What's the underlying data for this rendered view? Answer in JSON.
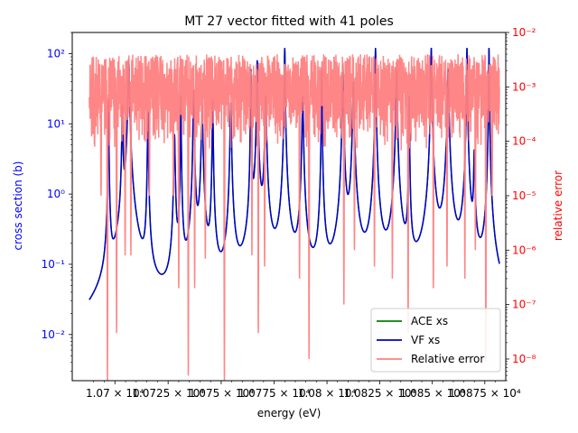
{
  "chart_data": {
    "type": "line",
    "title": "MT 27 vector fitted with 41 poles",
    "xlabel": "energy (eV)",
    "ylabel": "cross section (b)",
    "ylabel_right": "relative error",
    "x_scale": "log",
    "y_scale": "log",
    "y_right_scale": "log",
    "xlim": [
      10680,
      10885
    ],
    "ylim": [
      0.0022,
      200
    ],
    "ylim_right": [
      4e-09,
      0.01
    ],
    "x_ticks": [
      {
        "value": 10700,
        "label": "1.07 × 10⁴"
      },
      {
        "value": 10725,
        "label": "1.0725 × 10⁴"
      },
      {
        "value": 10750,
        "label": "1.075 × 10⁴"
      },
      {
        "value": 10775,
        "label": "1.0775 × 10⁴"
      },
      {
        "value": 10800,
        "label": "1.08 × 10⁴"
      },
      {
        "value": 10825,
        "label": "1.0825 × 10⁴"
      },
      {
        "value": 10850,
        "label": "1.085 × 10⁴"
      },
      {
        "value": 10875,
        "label": "1.0875 × 10⁴"
      }
    ],
    "y_ticks": [
      {
        "value": 0.01,
        "label": "10⁻²"
      },
      {
        "value": 0.1,
        "label": "10⁻¹"
      },
      {
        "value": 1,
        "label": "10⁰"
      },
      {
        "value": 10,
        "label": "10¹"
      },
      {
        "value": 100,
        "label": "10²"
      }
    ],
    "y_right_ticks": [
      {
        "value": 1e-08,
        "label": "10⁻⁸"
      },
      {
        "value": 1e-07,
        "label": "10⁻⁷"
      },
      {
        "value": 1e-06,
        "label": "10⁻⁶"
      },
      {
        "value": 1e-05,
        "label": "10⁻⁵"
      },
      {
        "value": 0.0001,
        "label": "10⁻⁴"
      },
      {
        "value": 0.001,
        "label": "10⁻³"
      },
      {
        "value": 0.01,
        "label": "10⁻²"
      }
    ],
    "x_range": [
      10688,
      10882
    ],
    "baseline": 0.0009,
    "resonances": [
      {
        "x": 10697.0,
        "peak": 22
      },
      {
        "x": 10703.5,
        "peak": 18
      },
      {
        "x": 10706.5,
        "peak": 80
      },
      {
        "x": 10715.5,
        "peak": 15
      },
      {
        "x": 10728.0,
        "peak": 7
      },
      {
        "x": 10731.0,
        "peak": 25
      },
      {
        "x": 10737.0,
        "peak": 30
      },
      {
        "x": 10741.0,
        "peak": 18
      },
      {
        "x": 10746.0,
        "peak": 22
      },
      {
        "x": 10754.5,
        "peak": 20
      },
      {
        "x": 10764.0,
        "peak": 60
      },
      {
        "x": 10767.0,
        "peak": 80
      },
      {
        "x": 10771.0,
        "peak": 25
      },
      {
        "x": 10780.0,
        "peak": 120
      },
      {
        "x": 10788.5,
        "peak": 25
      },
      {
        "x": 10797.5,
        "peak": 60
      },
      {
        "x": 10807.5,
        "peak": 70
      },
      {
        "x": 10812.5,
        "peak": 40
      },
      {
        "x": 10823.0,
        "peak": 120
      },
      {
        "x": 10833.0,
        "peak": 60
      },
      {
        "x": 10839.0,
        "peak": 25
      },
      {
        "x": 10849.5,
        "peak": 120
      },
      {
        "x": 10857.5,
        "peak": 60
      },
      {
        "x": 10866.5,
        "peak": 120
      },
      {
        "x": 10870.0,
        "peak": 4
      },
      {
        "x": 10877.0,
        "peak": 120
      }
    ],
    "series": [
      {
        "name": "ACE xs",
        "color": "#008000",
        "axis": "left"
      },
      {
        "name": "VF xs",
        "color": "#0000cc",
        "axis": "left"
      },
      {
        "name": "Relative error",
        "color": "#ff8080",
        "axis": "right"
      }
    ],
    "relative_error": {
      "typical_range": [
        0.0001,
        0.004
      ],
      "dips": [
        {
          "x": 10690.5,
          "value": 8e-05
        },
        {
          "x": 10693.5,
          "value": 1e-05
        },
        {
          "x": 10696.5,
          "value": 3e-09
        },
        {
          "x": 10700.8,
          "value": 3e-08
        },
        {
          "x": 10704.8,
          "value": 8e-07
        },
        {
          "x": 10707.5,
          "value": 8e-07
        },
        {
          "x": 10716.2,
          "value": 1e-05
        },
        {
          "x": 10727.5,
          "value": 1e-05
        },
        {
          "x": 10730.0,
          "value": 2e-07
        },
        {
          "x": 10734.5,
          "value": 4.95e-09
        },
        {
          "x": 10737.5,
          "value": 2e-07
        },
        {
          "x": 10742.5,
          "value": 7e-07
        },
        {
          "x": 10751.5,
          "value": 4e-09
        },
        {
          "x": 10764.5,
          "value": 8e-07
        },
        {
          "x": 10767.5,
          "value": 3e-08
        },
        {
          "x": 10770.5,
          "value": 5e-07
        },
        {
          "x": 10787.0,
          "value": 3e-07
        },
        {
          "x": 10791.5,
          "value": 1e-08
        },
        {
          "x": 10808.0,
          "value": 1e-07
        },
        {
          "x": 10813.0,
          "value": 1e-06
        },
        {
          "x": 10822.5,
          "value": 5e-07
        },
        {
          "x": 10831.0,
          "value": 3e-07
        },
        {
          "x": 10838.5,
          "value": 3e-08
        },
        {
          "x": 10850.5,
          "value": 2e-07
        },
        {
          "x": 10857.0,
          "value": 5e-07
        },
        {
          "x": 10865.5,
          "value": 3e-07
        },
        {
          "x": 10870.5,
          "value": 1e-06
        },
        {
          "x": 10875.5,
          "value": 9e-09
        },
        {
          "x": 10878.5,
          "value": 1e-05
        }
      ]
    },
    "legend": {
      "placement": "lower-right"
    },
    "grid": false
  }
}
